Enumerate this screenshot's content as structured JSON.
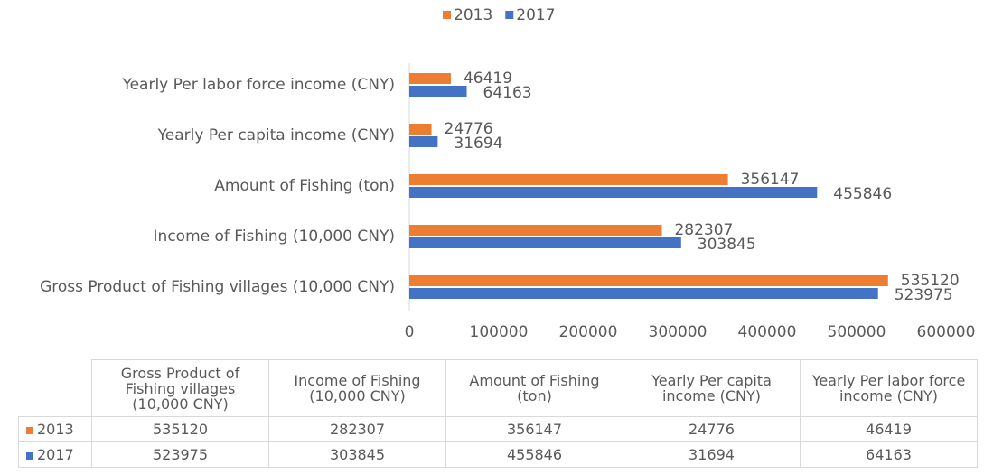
{
  "chart_data": {
    "type": "bar",
    "orientation": "horizontal",
    "categories": [
      "Gross Product of Fishing villages (10,000 CNY)",
      "Income of Fishing (10,000 CNY)",
      "Amount of Fishing (ton)",
      "Yearly Per capita income (CNY)",
      "Yearly Per labor force income (CNY)"
    ],
    "series": [
      {
        "name": "2013",
        "color": "#ed7d31",
        "values": [
          535120,
          282307,
          356147,
          24776,
          46419
        ]
      },
      {
        "name": "2017",
        "color": "#4472c4",
        "values": [
          523975,
          303845,
          455846,
          31694,
          64163
        ]
      }
    ],
    "xlim": [
      0,
      600000
    ],
    "xticks": [
      0,
      100000,
      200000,
      300000,
      400000,
      500000,
      600000
    ],
    "legend": "top",
    "data_table": true
  }
}
